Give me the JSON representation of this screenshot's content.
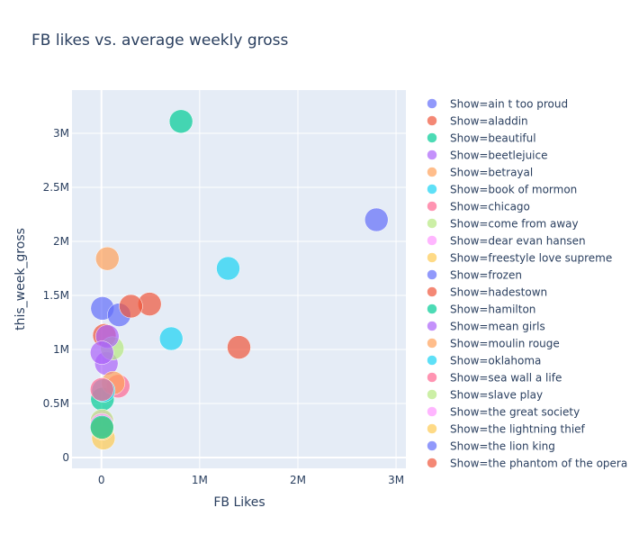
{
  "chart_data": {
    "type": "scatter",
    "title": "FB likes vs. average weekly gross",
    "xlabel": "FB Likes",
    "ylabel": "this_week_gross",
    "xlim": [
      -300000,
      3100000
    ],
    "ylim": [
      -100000,
      3400000
    ],
    "x_ticks": [
      {
        "value": 0,
        "label": "0"
      },
      {
        "value": 1000000,
        "label": "1M"
      },
      {
        "value": 2000000,
        "label": "2M"
      },
      {
        "value": 3000000,
        "label": "3M"
      }
    ],
    "y_ticks": [
      {
        "value": 0,
        "label": "0"
      },
      {
        "value": 500000,
        "label": "0.5M"
      },
      {
        "value": 1000000,
        "label": "1M"
      },
      {
        "value": 1500000,
        "label": "1.5M"
      },
      {
        "value": 2000000,
        "label": "2M"
      },
      {
        "value": 2500000,
        "label": "2.5M"
      },
      {
        "value": 3000000,
        "label": "3M"
      }
    ],
    "grid": true,
    "legend_position": "right",
    "series": [
      {
        "name": "Show=ain t too proud",
        "color": "#636efa",
        "points": [
          {
            "x": 10000,
            "y": 1380000
          }
        ]
      },
      {
        "name": "Show=aladdin",
        "color": "#EF553B",
        "points": [
          {
            "x": 30000,
            "y": 1130000
          }
        ]
      },
      {
        "name": "Show=beautiful",
        "color": "#00cc96",
        "points": [
          {
            "x": 10000,
            "y": 540000
          }
        ]
      },
      {
        "name": "Show=beetlejuice",
        "color": "#ab63fa",
        "points": [
          {
            "x": 50000,
            "y": 870000
          }
        ]
      },
      {
        "name": "Show=betrayal",
        "color": "#FFA15A",
        "points": [
          {
            "x": 60000,
            "y": 1840000
          }
        ]
      },
      {
        "name": "Show=book of mormon",
        "color": "#19d3f3",
        "points": [
          {
            "x": 1290000,
            "y": 1750000
          },
          {
            "x": 710000,
            "y": 1100000
          }
        ]
      },
      {
        "name": "Show=chicago",
        "color": "#FF6692",
        "points": [
          {
            "x": 170000,
            "y": 660000
          }
        ]
      },
      {
        "name": "Show=come from away",
        "color": "#B6E880",
        "points": [
          {
            "x": 110000,
            "y": 1010000
          }
        ]
      },
      {
        "name": "Show=dear evan hansen",
        "color": "#FF97FF",
        "points": [
          {
            "x": 5000,
            "y": 330000
          }
        ]
      },
      {
        "name": "Show=freestyle love supreme",
        "color": "#FECB52",
        "points": [
          {
            "x": 20000,
            "y": 180000
          }
        ]
      },
      {
        "name": "Show=frozen",
        "color": "#636efa",
        "points": [
          {
            "x": 2800000,
            "y": 2200000
          }
        ]
      },
      {
        "name": "Show=hadestown",
        "color": "#EF553B",
        "points": [
          {
            "x": 1400000,
            "y": 1020000
          },
          {
            "x": 490000,
            "y": 1420000
          }
        ]
      },
      {
        "name": "Show=hamilton",
        "color": "#00cc96",
        "points": [
          {
            "x": 810000,
            "y": 3110000
          }
        ]
      },
      {
        "name": "Show=mean girls",
        "color": "#ab63fa",
        "points": [
          {
            "x": 60000,
            "y": 1120000
          }
        ]
      },
      {
        "name": "Show=moulin rouge",
        "color": "#FFA15A",
        "points": [
          {
            "x": 120000,
            "y": 690000
          }
        ]
      },
      {
        "name": "Show=oklahoma",
        "color": "#19d3f3",
        "points": [
          {
            "x": 20000,
            "y": 620000
          }
        ]
      },
      {
        "name": "Show=sea wall a life",
        "color": "#FF6692",
        "points": [
          {
            "x": 5000,
            "y": 630000
          }
        ]
      },
      {
        "name": "Show=slave play",
        "color": "#B6E880",
        "points": [
          {
            "x": 5000,
            "y": 340000
          }
        ]
      },
      {
        "name": "Show=the great society",
        "color": "#FF97FF",
        "points": [
          {
            "x": 3000,
            "y": 300000
          }
        ]
      },
      {
        "name": "Show=the lightning thief",
        "color": "#FECB52",
        "points": [
          {
            "x": 8000,
            "y": 270000
          }
        ]
      },
      {
        "name": "Show=the lion king",
        "color": "#636efa",
        "points": [
          {
            "x": 180000,
            "y": 1320000
          }
        ]
      },
      {
        "name": "Show=the phantom of the opera",
        "color": "#EF553B",
        "points": [
          {
            "x": 300000,
            "y": 1400000
          }
        ]
      },
      {
        "name": "",
        "color": "#ab63fa",
        "points": [
          {
            "x": 5000,
            "y": 970000
          }
        ]
      },
      {
        "name": "",
        "color": "#00cc96",
        "points": [
          {
            "x": 5000,
            "y": 280000
          }
        ]
      }
    ]
  }
}
